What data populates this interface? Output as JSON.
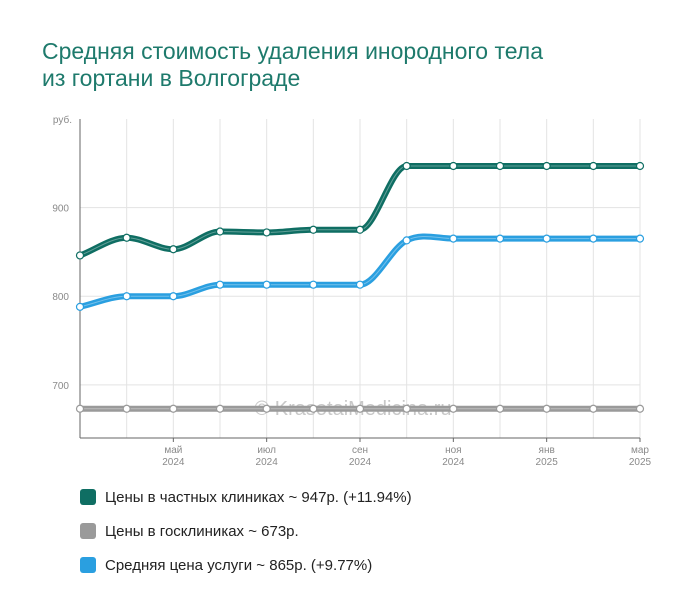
{
  "title_lines": [
    "Средняя стоимость удаления инородного тела",
    "из гортани в Волгограде"
  ],
  "watermark": "© KrasotaiMedicina.ru",
  "chart_data": {
    "type": "line",
    "ylabel": "руб.",
    "ylim": [
      640,
      1000
    ],
    "yticks": [
      700,
      800,
      900
    ],
    "ytick_labels": [
      "700",
      "800",
      "900"
    ],
    "grid": true,
    "x": [
      "2024-03",
      "2024-04",
      "2024-05",
      "2024-06",
      "2024-07",
      "2024-08",
      "2024-09",
      "2024-10",
      "2024-11",
      "2024-12",
      "2025-01",
      "2025-02",
      "2025-03"
    ],
    "xtick_labels": [
      {
        "index": 2,
        "month": "май",
        "year": "2024"
      },
      {
        "index": 4,
        "month": "июл",
        "year": "2024"
      },
      {
        "index": 6,
        "month": "сен",
        "year": "2024"
      },
      {
        "index": 8,
        "month": "ноя",
        "year": "2024"
      },
      {
        "index": 10,
        "month": "янв",
        "year": "2025"
      },
      {
        "index": 12,
        "month": "мар",
        "year": "2025"
      }
    ],
    "series": [
      {
        "key": "private",
        "color": "#0f6e63",
        "values": [
          846,
          866,
          853,
          873,
          872,
          875,
          875,
          947,
          947,
          947,
          947,
          947,
          947
        ]
      },
      {
        "key": "public",
        "color": "#9a9a9a",
        "values": [
          673,
          673,
          673,
          673,
          673,
          673,
          673,
          673,
          673,
          673,
          673,
          673,
          673
        ]
      },
      {
        "key": "average",
        "color": "#2a9fe0",
        "values": [
          788,
          800,
          800,
          813,
          813,
          813,
          813,
          863,
          865,
          865,
          865,
          865,
          865
        ]
      }
    ]
  },
  "legend": [
    {
      "label": "Цены в частных клиниках ~ 947р. (+11.94%)",
      "color": "#0f6e63"
    },
    {
      "label": "Цены в госклиниках ~ 673р.",
      "color": "#9a9a9a"
    },
    {
      "label": "Средняя цена услуги ~ 865р. (+9.77%)",
      "color": "#2a9fe0"
    }
  ]
}
